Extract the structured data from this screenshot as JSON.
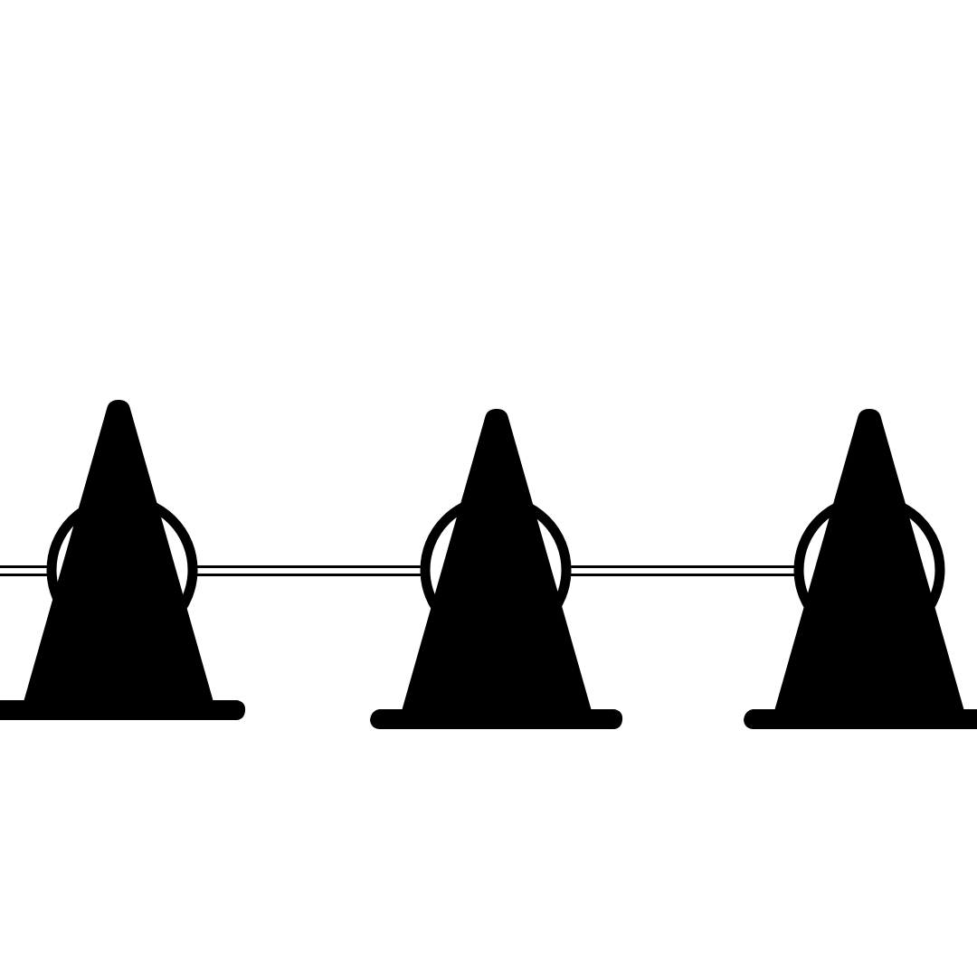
{
  "scene": {
    "subject": "traffic-cones-with-chain-barrier",
    "cone_count": 3,
    "colors": {
      "background": "#ffffff",
      "icon": "#000000"
    }
  }
}
